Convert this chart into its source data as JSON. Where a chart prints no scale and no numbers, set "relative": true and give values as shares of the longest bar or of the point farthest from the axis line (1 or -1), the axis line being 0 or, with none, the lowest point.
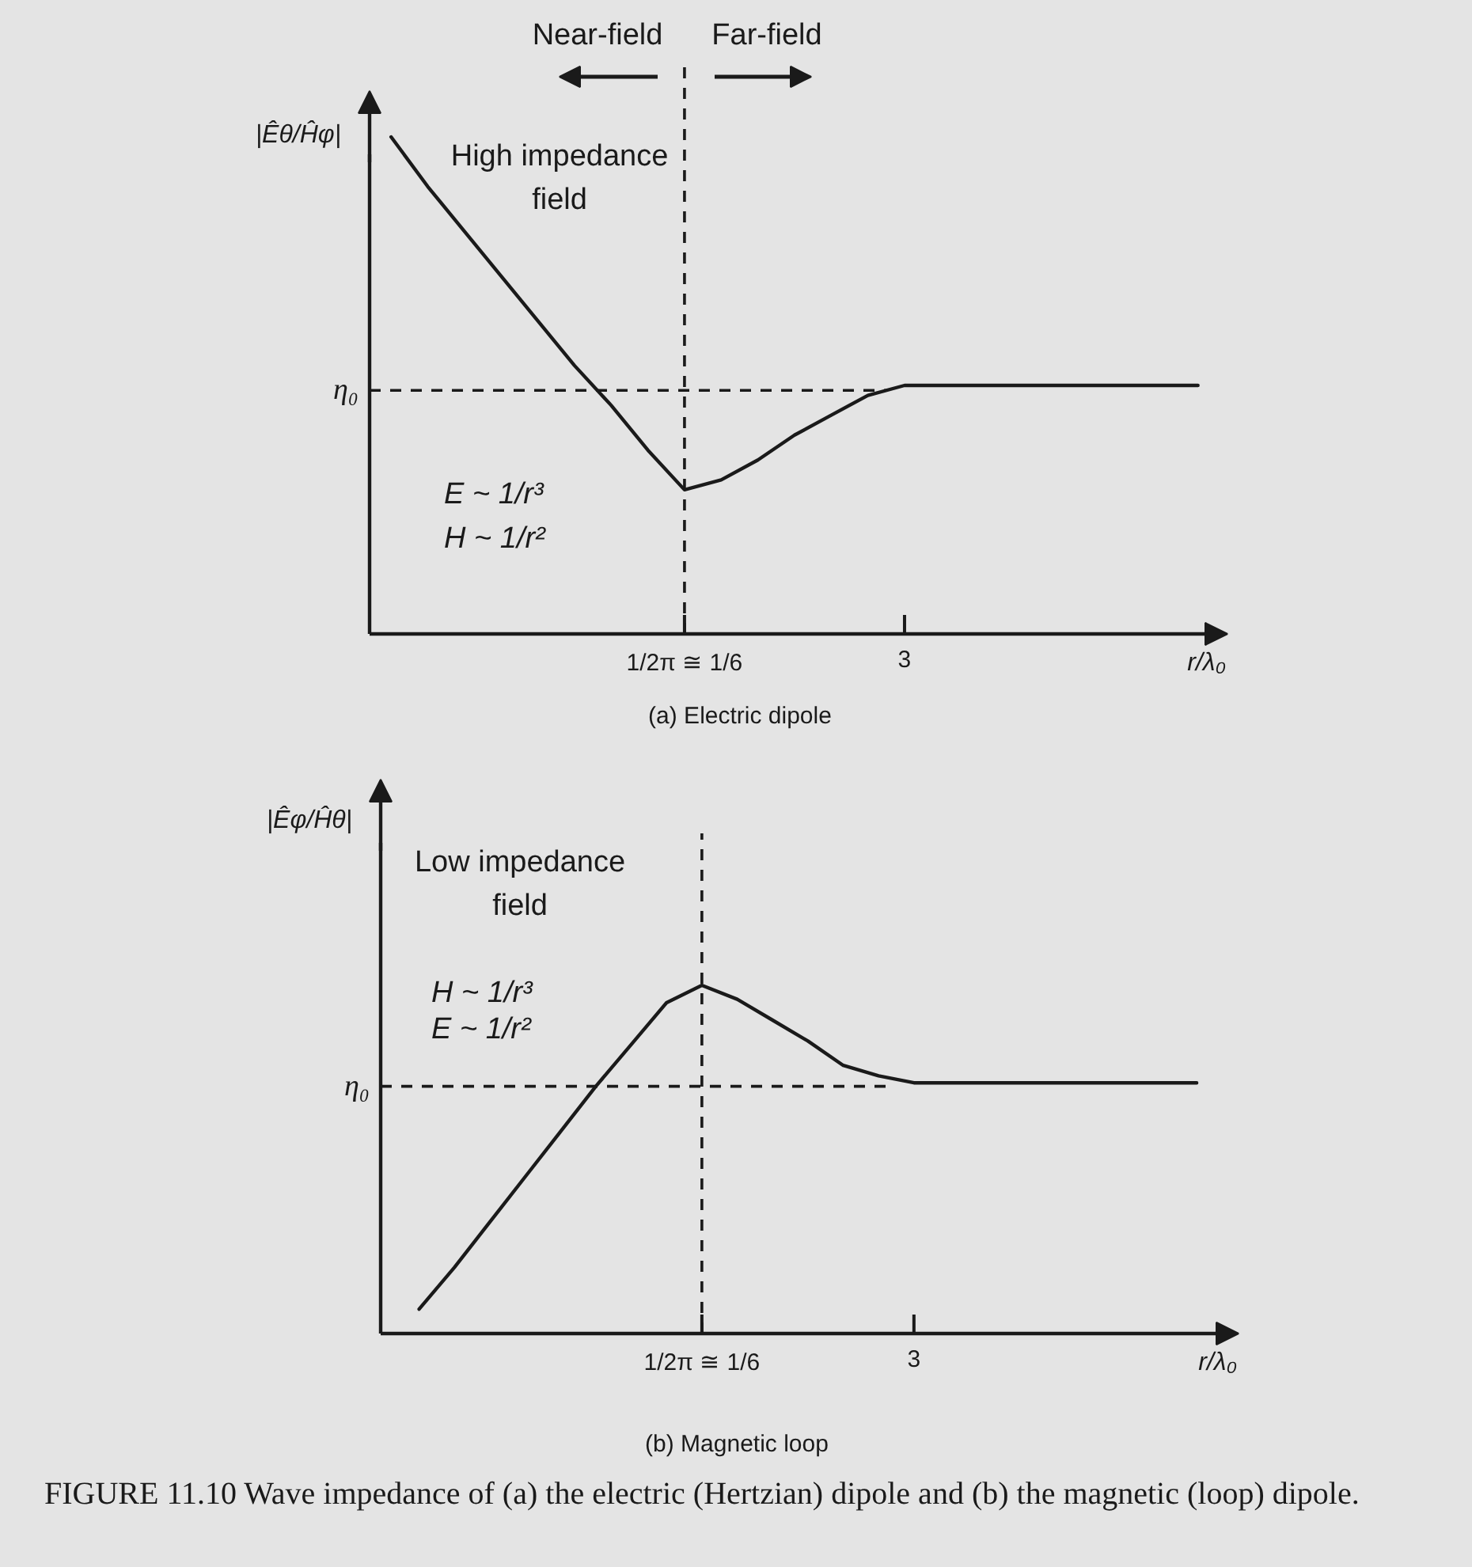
{
  "chart_data": [
    {
      "type": "line",
      "title": "(a) Electric dipole",
      "xlabel": "r/λ₀",
      "ylabel": "|Êθ/Ĥφ|",
      "relative": true,
      "categories": [
        null,
        null,
        null,
        null,
        null,
        null,
        null,
        null,
        "1/2π ≅ 1/6",
        null,
        null,
        null,
        null,
        null,
        "3",
        null,
        null,
        null,
        null,
        null,
        null,
        null,
        null
      ],
      "series": [
        {
          "color": "#1a1a1a",
          "values": [
            1,
            0.9,
            0.81,
            0.72,
            0.63,
            0.54,
            0.46,
            0.37,
            0.29,
            0.31,
            0.35,
            0.4,
            0.44,
            0.48,
            0.5,
            0.5,
            0.5,
            0.5,
            0.5,
            0.5,
            0.5,
            0.5,
            0.5
          ]
        }
      ],
      "ref_lines": [
        {
          "axis": "y",
          "value": 0.49,
          "label": "η₀",
          "line_style": "dashed",
          "color": "#1a1a1a"
        },
        {
          "axis": "x",
          "value": "1/2π ≅ 1/6",
          "line_style": "dashed",
          "color": "#1a1a1a"
        }
      ],
      "annotations": [
        "Near-field",
        "Far-field",
        "High impedance\nfield",
        "E ~ 1/r³",
        "H ~ 1/r²"
      ]
    },
    {
      "type": "line",
      "title": "(b) Magnetic loop",
      "xlabel": "r/λ₀",
      "ylabel": "|Êφ/Ĥθ|",
      "relative": true,
      "categories": [
        null,
        null,
        null,
        null,
        null,
        null,
        null,
        null,
        "1/2π ≅ 1/6",
        null,
        null,
        null,
        null,
        null,
        "3",
        null,
        null,
        null,
        null,
        null,
        null,
        null,
        null
      ],
      "series": [
        {
          "color": "#1a1a1a",
          "values": [
            0.07,
            0.19,
            0.32,
            0.45,
            0.58,
            0.71,
            0.83,
            0.95,
            1,
            0.96,
            0.9,
            0.84,
            0.77,
            0.74,
            0.72,
            0.72,
            0.72,
            0.72,
            0.72,
            0.72,
            0.72,
            0.72,
            0.72
          ]
        }
      ],
      "ref_lines": [
        {
          "axis": "y",
          "value": 0.71,
          "label": "η₀",
          "line_style": "dashed",
          "color": "#1a1a1a"
        },
        {
          "axis": "x",
          "value": "1/2π ≅ 1/6",
          "line_style": "dashed",
          "color": "#1a1a1a"
        }
      ],
      "annotations": [
        "Low impedance\nfield",
        "H ~ 1/r³",
        "E ~ 1/r²",
        "FIGURE 11.10 Wave impedance of (a) the electric (Hertzian) dipole and (b) the magnetic (loop) dipole."
      ]
    }
  ]
}
